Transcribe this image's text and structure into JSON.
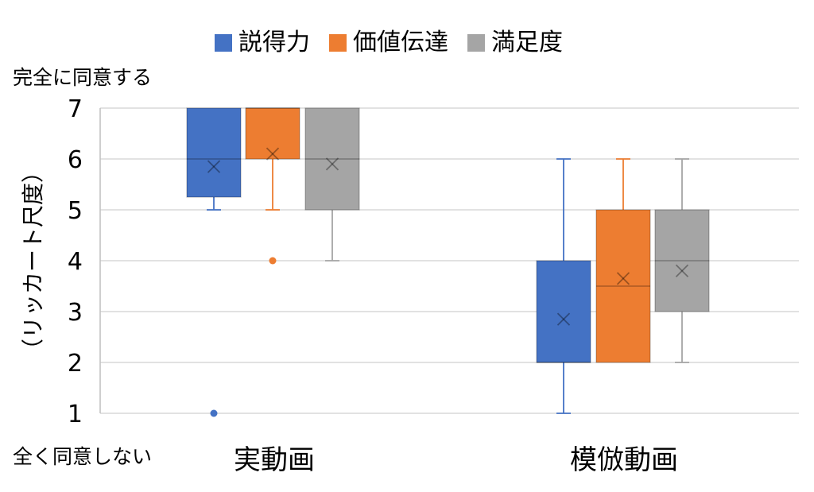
{
  "chart_data": {
    "type": "box",
    "categories": [
      "実動画",
      "模倣動画"
    ],
    "ylim": [
      1,
      7
    ],
    "yticks": [
      "1",
      "2",
      "3",
      "4",
      "5",
      "6",
      "7"
    ],
    "ylabel": "（リッカート尺度）",
    "y_top_label": "完全に同意する",
    "y_bottom_label": "全く同意しない",
    "grid": true,
    "legend_position": "top",
    "series": [
      {
        "name": "説得力",
        "color": "#4472C4",
        "boxes": [
          {
            "whisker_low": 5,
            "q1": 5.25,
            "median": 6,
            "q3": 7,
            "whisker_high": 7,
            "mean": 5.85,
            "outliers": [
              1
            ]
          },
          {
            "whisker_low": 1,
            "q1": 2,
            "median": 2,
            "q3": 4,
            "whisker_high": 6,
            "mean": 2.85,
            "outliers": []
          }
        ]
      },
      {
        "name": "価値伝達",
        "color": "#ED7D31",
        "boxes": [
          {
            "whisker_low": 5,
            "q1": 6,
            "median": 7,
            "q3": 7,
            "whisker_high": 7,
            "mean": 6.1,
            "outliers": [
              4
            ]
          },
          {
            "whisker_low": 2,
            "q1": 2,
            "median": 3.5,
            "q3": 5,
            "whisker_high": 6,
            "mean": 3.65,
            "outliers": []
          }
        ]
      },
      {
        "name": "満足度",
        "color": "#A5A5A5",
        "boxes": [
          {
            "whisker_low": 4,
            "q1": 5,
            "median": 6,
            "q3": 7,
            "whisker_high": 7,
            "mean": 5.9,
            "outliers": []
          },
          {
            "whisker_low": 2,
            "q1": 3,
            "median": 4,
            "q3": 5,
            "whisker_high": 6,
            "mean": 3.8,
            "outliers": []
          }
        ]
      }
    ]
  },
  "colors": {
    "gridline": "#D9D9D9",
    "axis": "#BFBFBF"
  }
}
